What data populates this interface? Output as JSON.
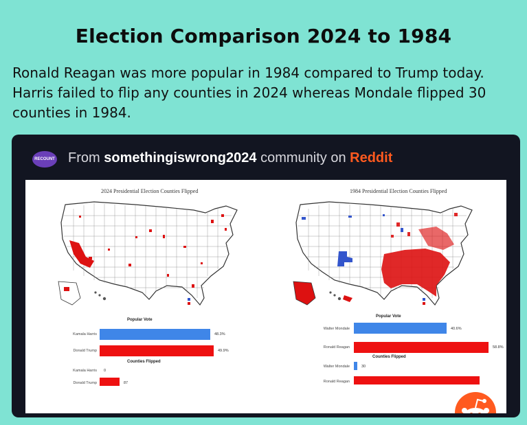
{
  "page": {
    "title": "Election Comparison 2024 to 1984",
    "intro": "Ronald Reagan was more popular in 1984 compared to Trump today. Harris failed to flip any counties in 2024 whereas Mondale flipped 30 counties in 1984."
  },
  "banner": {
    "logo_text": "RECOUNT",
    "prefix": "From",
    "community": "somethingiswrong2024",
    "middle": "community on",
    "site": "Reddit"
  },
  "colors": {
    "blue": "#3f86e8",
    "red": "#ee1111",
    "flip_blue": "#3355cc",
    "flip_red": "#dd1111"
  },
  "maps": {
    "left": {
      "title": "2024 Presidential Election Counties Flipped"
    },
    "right": {
      "title": "1984 Presidential Election Counties Flipped"
    }
  },
  "chart_data": [
    {
      "type": "bar",
      "orientation": "horizontal",
      "title": "Popular Vote",
      "xlim": [
        0,
        60
      ],
      "categories": [
        "Kamala Harris",
        "Donald Trump"
      ],
      "values": [
        48.3,
        49.9
      ],
      "value_labels": [
        "48.3%",
        "49.9%"
      ],
      "colors": [
        "#3f86e8",
        "#ee1111"
      ]
    },
    {
      "type": "bar",
      "orientation": "horizontal",
      "title": "Counties Flipped",
      "xlim": [
        0,
        600
      ],
      "categories": [
        "Kamala Harris",
        "Donald Trump"
      ],
      "values": [
        0,
        87
      ],
      "value_labels": [
        "0",
        "87"
      ],
      "colors": [
        "#3f86e8",
        "#ee1111"
      ]
    },
    {
      "type": "bar",
      "orientation": "horizontal",
      "title": "Popular Vote",
      "xlim": [
        0,
        60
      ],
      "categories": [
        "Walter Mondale",
        "Ronald Reagan"
      ],
      "values": [
        40.6,
        58.8
      ],
      "value_labels": [
        "40.6%",
        "58.8%"
      ],
      "colors": [
        "#3f86e8",
        "#ee1111"
      ]
    },
    {
      "type": "bar",
      "orientation": "horizontal",
      "title": "Counties Flipped",
      "xlim": [
        0,
        1200
      ],
      "categories": [
        "Walter Mondale",
        "Ronald Reagan"
      ],
      "values": [
        30,
        1100
      ],
      "value_labels": [
        "30",
        ""
      ],
      "colors": [
        "#3f86e8",
        "#ee1111"
      ]
    }
  ]
}
